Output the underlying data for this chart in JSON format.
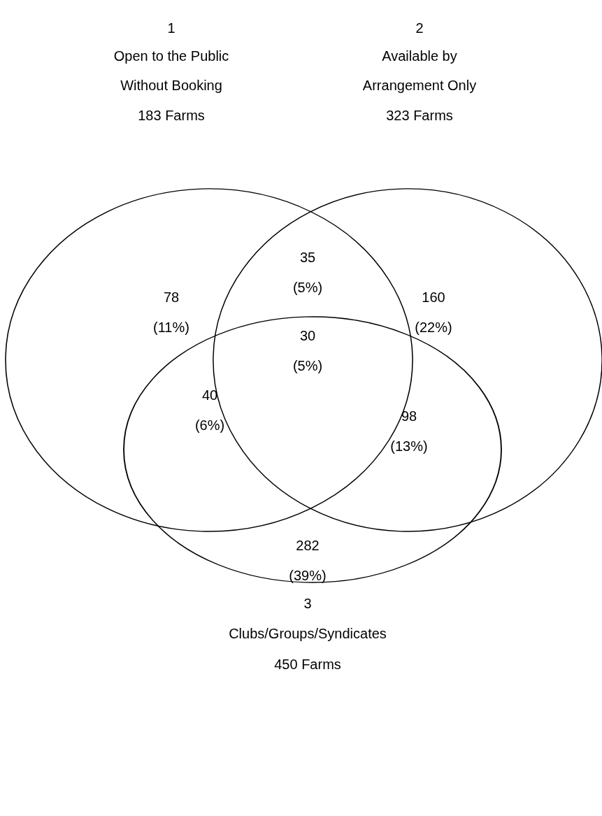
{
  "chart_data": {
    "type": "other",
    "annotations": [
      "1",
      "Open to the Public",
      "Without Booking",
      "183 Farms",
      "2",
      "Available by",
      "Arrangement Only",
      "323 Farms",
      "3",
      "Clubs/Groups/Syndicates",
      "450 Farms"
    ],
    "categories": [
      "78",
      "35",
      "160",
      "30",
      "40",
      "98",
      "282"
    ],
    "values": [
      11,
      5,
      22,
      5,
      6,
      13,
      39
    ],
    "value_labels": [
      "(11%)",
      "(5%)",
      "(22%)",
      "(5%)",
      "(6%)",
      "(13%)",
      "(39%)"
    ]
  }
}
